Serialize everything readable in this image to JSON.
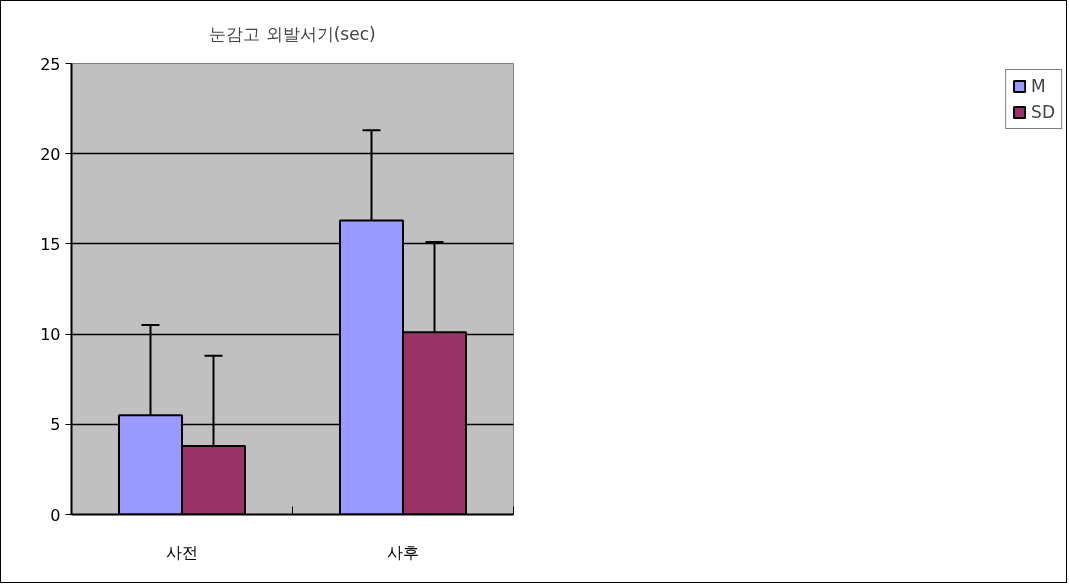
{
  "chart_data": {
    "type": "bar",
    "title": "눈감고 외발서기(sec)",
    "categories": [
      "사전",
      "사후"
    ],
    "series": [
      {
        "name": "M",
        "color": "#9999ff",
        "values": [
          5.5,
          16.3
        ],
        "errors": [
          [
            5.5,
            10.5
          ],
          [
            16.3,
            21.3
          ]
        ]
      },
      {
        "name": "SD",
        "color": "#993366",
        "values": [
          3.8,
          10.1
        ],
        "errors": [
          [
            3.8,
            8.8
          ],
          [
            10.1,
            15.1
          ]
        ]
      }
    ],
    "ylim": [
      0,
      25
    ],
    "yticks": [
      0,
      5,
      10,
      15,
      20,
      25
    ],
    "grid": "y",
    "legend": "right"
  }
}
